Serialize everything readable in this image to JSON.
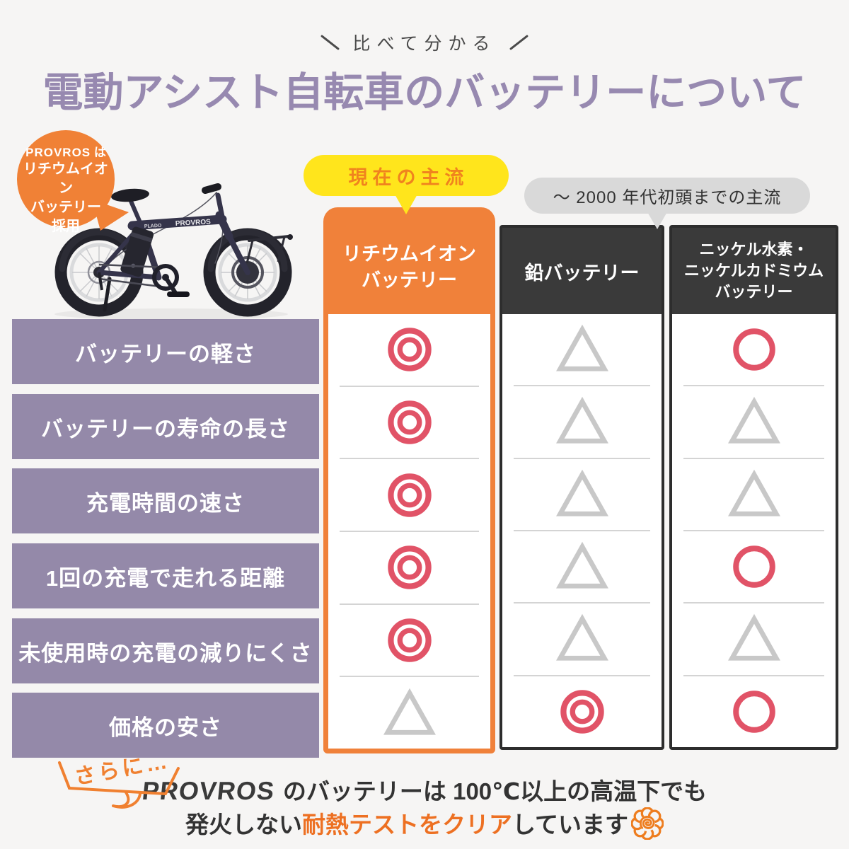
{
  "slogan": "比べて分かる",
  "title": "電動アシスト自転車のバッテリーについて",
  "bubble": {
    "brand": "PROVROS",
    "suffix": " は",
    "line2": "リチウムイオン",
    "line3": "バッテリー",
    "line4": "採用"
  },
  "badges": {
    "current": "現在の主流",
    "old": "～ 2000 年代初頭までの主流"
  },
  "bike": {
    "frame_brand": "PROVROS",
    "frame_model": "PLADO"
  },
  "table": {
    "row_labels": [
      "バッテリーの軽さ",
      "バッテリーの寿命の長さ",
      "充電時間の速さ",
      "1回の充電で走れる距離",
      "未使用時の充電の減りにくさ",
      "価格の安さ"
    ],
    "columns": [
      {
        "id": "lithium",
        "theme": "orange",
        "name_lines": [
          "リチウムイオン",
          "バッテリー"
        ],
        "symbols": [
          "double-circle",
          "double-circle",
          "double-circle",
          "double-circle",
          "double-circle",
          "triangle"
        ]
      },
      {
        "id": "lead",
        "theme": "dark",
        "name_lines": [
          "鉛バッテリー"
        ],
        "symbols": [
          "triangle",
          "triangle",
          "triangle",
          "triangle",
          "triangle",
          "double-circle"
        ]
      },
      {
        "id": "nicd",
        "theme": "dark",
        "name_lines": [
          "ニッケル水素・",
          "ニッケルカドミウム",
          "バッテリー"
        ],
        "symbols": [
          "circle",
          "triangle",
          "triangle",
          "circle",
          "triangle",
          "circle"
        ]
      }
    ],
    "symbol_colors": {
      "positive": "#e15367",
      "neutral": "#c8c8c8"
    }
  },
  "footer": {
    "lead_in": "さらに…",
    "brand": "PROVROS",
    "line1_rest": "のバッテリーは 100℃以上の高温下でも",
    "line2_pre": "発火しない",
    "line2_em": "耐熱テストをクリア",
    "line2_post": "しています"
  },
  "colors": {
    "background": "#f6f5f4",
    "title_purple": "#9789b0",
    "row_purple": "#9489a9",
    "accent_orange": "#f0813a",
    "badge_yellow": "#ffe51c",
    "badge_gray": "#d9d9d9",
    "dark_column": "#3a3a3a",
    "symbol_red": "#e15367",
    "symbol_gray": "#c8c8c8",
    "footer_orange": "#ed7022"
  },
  "chart_data": {
    "type": "table",
    "title": "電動アシスト自転車のバッテリーについて",
    "subtitle": "比べて分かる",
    "columns": [
      "リチウムイオンバッテリー",
      "鉛バッテリー",
      "ニッケル水素・ニッケルカドミウムバッテリー"
    ],
    "column_notes": [
      "現在の主流",
      "～2000年代初頭までの主流",
      "～2000年代初頭までの主流"
    ],
    "rows": [
      "バッテリーの軽さ",
      "バッテリーの寿命の長さ",
      "充電時間の速さ",
      "1回の充電で走れる距離",
      "未使用時の充電の減りにくさ",
      "価格の安さ"
    ],
    "values": [
      [
        "◎",
        "△",
        "○"
      ],
      [
        "◎",
        "△",
        "△"
      ],
      [
        "◎",
        "△",
        "△"
      ],
      [
        "◎",
        "△",
        "○"
      ],
      [
        "◎",
        "△",
        "△"
      ],
      [
        "△",
        "◎",
        "○"
      ]
    ],
    "footnote": "PROVROSのバッテリーは100℃以上の高温下でも発火しない耐熱テストをクリアしています"
  }
}
